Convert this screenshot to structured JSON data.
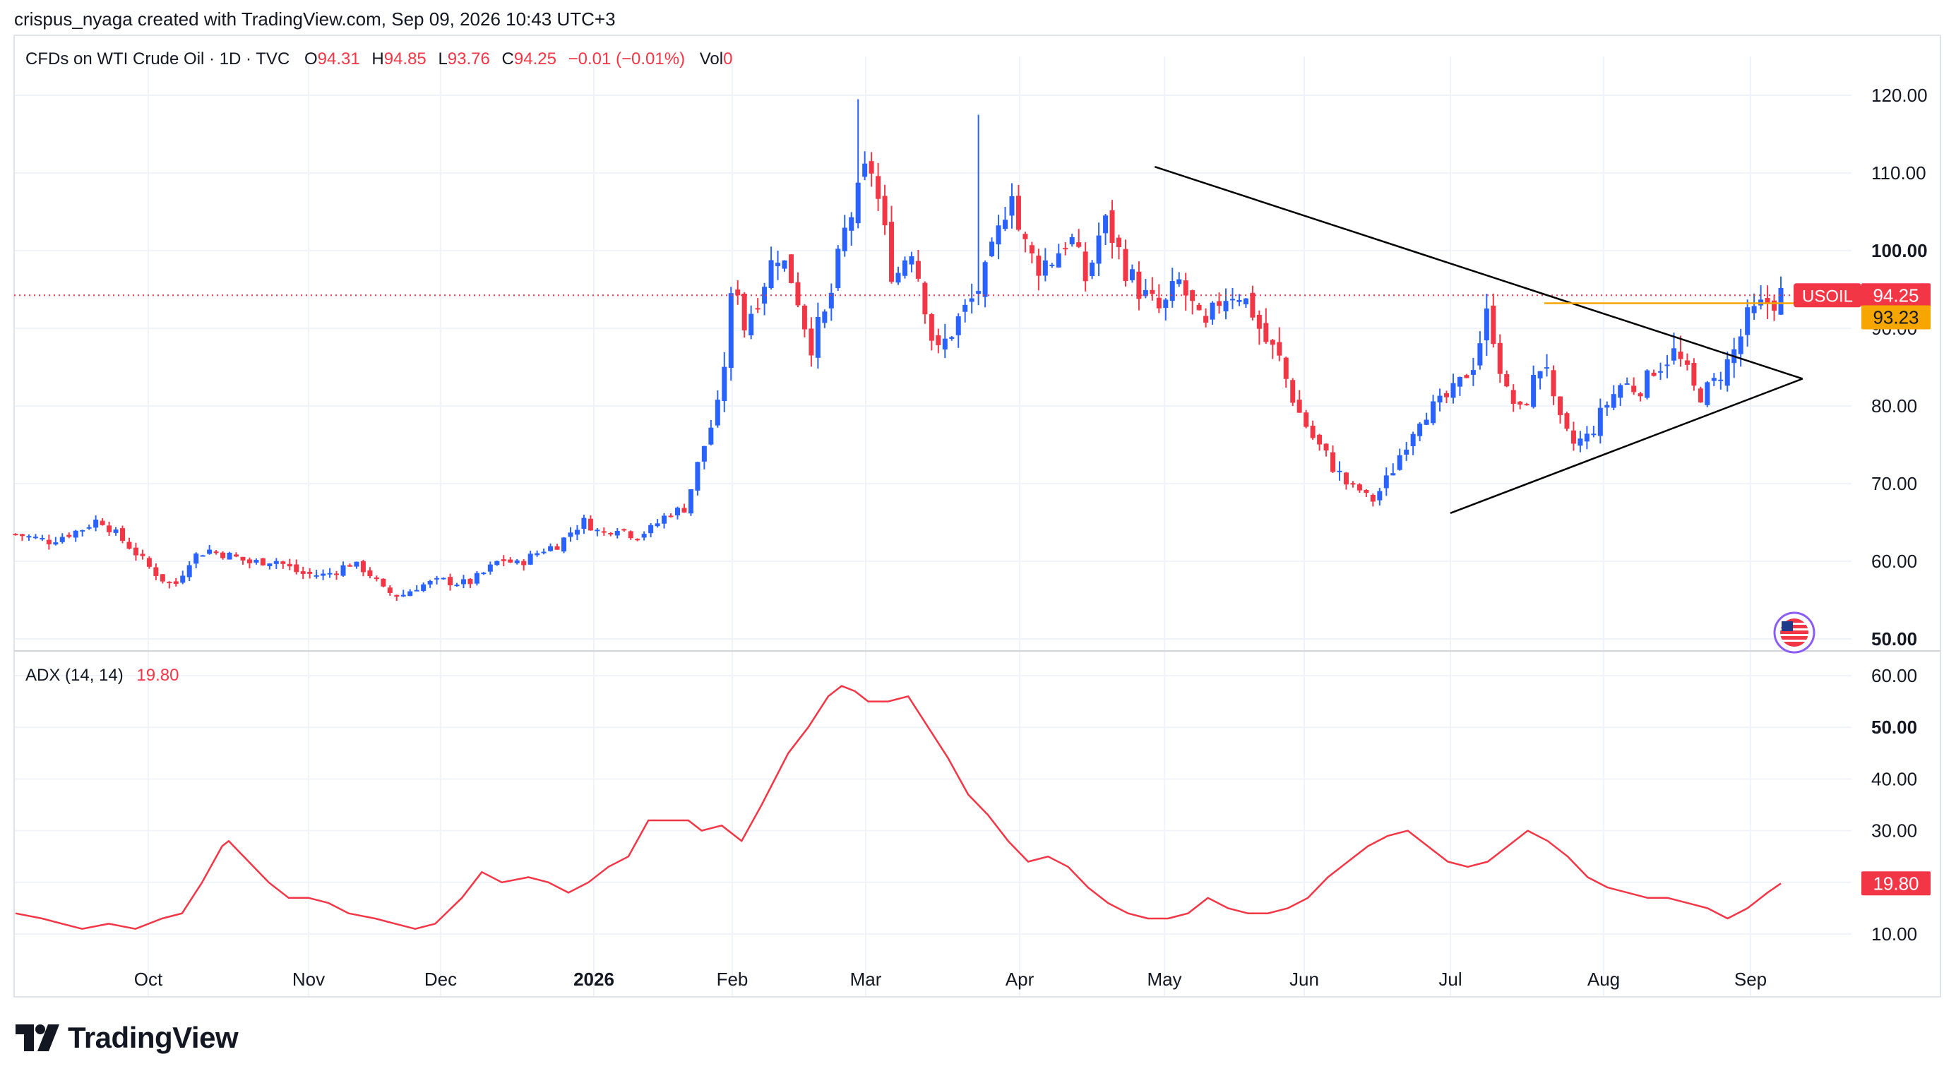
{
  "attribution": "crispus_nyaga created with TradingView.com, Sep 09, 2026 10:43 UTC+3",
  "brand": "TradingView",
  "colors": {
    "up": "#2962ff",
    "down": "#f23645",
    "adx": "#f23645",
    "level": "#f7a600",
    "trend": "#000000",
    "grid": "#f0f3fa"
  },
  "legend": {
    "symbol": "CFDs on WTI Crude Oil · 1D · TVC",
    "o_label": "O",
    "o": "94.31",
    "h_label": "H",
    "h": "94.85",
    "l_label": "L",
    "l": "93.76",
    "c_label": "C",
    "c": "94.25",
    "change": "−0.01 (−0.01%)",
    "vol_label": "Vol",
    "vol": "0"
  },
  "adx_legend": {
    "label": "ADX (14, 14)",
    "value": "19.80"
  },
  "price_tags": {
    "ticker": "USOIL",
    "last": "94.25",
    "level": "93.23",
    "adx": "19.80"
  },
  "chart_data": [
    {
      "type": "candlestick",
      "title": "CFDs on WTI Crude Oil · 1D · TVC",
      "x_ticks": [
        "Oct",
        "Nov",
        "Dec",
        "2026",
        "Feb",
        "Mar",
        "Apr",
        "May",
        "Jun",
        "Jul",
        "Aug",
        "Sep"
      ],
      "y_ticks": [
        "50.00",
        "60.00",
        "70.00",
        "80.00",
        "90.00",
        "100.00",
        "110.00",
        "120.00"
      ],
      "ylim": [
        48,
        125
      ],
      "grid": true,
      "last_price": 94.25,
      "horizontal_level": 93.23,
      "series_path": [
        [
          0,
          63.5
        ],
        [
          4,
          62.6
        ],
        [
          8,
          64.2
        ],
        [
          10,
          65.5
        ],
        [
          12,
          63.5
        ],
        [
          14,
          61.5
        ],
        [
          16,
          59.2
        ],
        [
          18,
          57.3
        ],
        [
          19,
          56.8
        ],
        [
          21,
          60.5
        ],
        [
          23,
          61.5
        ],
        [
          26,
          60.6
        ],
        [
          28,
          59.8
        ],
        [
          31,
          60.2
        ],
        [
          34,
          58.4
        ],
        [
          37,
          58.2
        ],
        [
          40,
          59.7
        ],
        [
          42,
          58.8
        ],
        [
          44,
          56.2
        ],
        [
          46,
          55.5
        ],
        [
          48,
          56.8
        ],
        [
          51,
          57.5
        ],
        [
          54,
          57.1
        ],
        [
          56,
          58.5
        ],
        [
          58,
          60.3
        ],
        [
          60,
          59.6
        ],
        [
          63,
          61.5
        ],
        [
          65,
          62.2
        ],
        [
          66,
          63.5
        ],
        [
          68,
          65.2
        ],
        [
          70,
          63.5
        ],
        [
          72,
          64.5
        ],
        [
          74,
          63.2
        ],
        [
          76,
          64.2
        ],
        [
          78,
          66.2
        ],
        [
          80,
          66.8
        ],
        [
          82,
          74
        ],
        [
          84,
          80
        ],
        [
          85,
          88
        ],
        [
          86,
          98
        ],
        [
          87,
          90
        ],
        [
          89,
          95
        ],
        [
          91,
          100
        ],
        [
          93,
          96
        ],
        [
          95,
          88
        ],
        [
          97,
          92
        ],
        [
          99,
          102
        ],
        [
          101,
          108
        ],
        [
          102,
          112
        ],
        [
          103,
          107
        ],
        [
          105,
          96
        ],
        [
          107,
          101
        ],
        [
          109,
          92
        ],
        [
          110,
          86
        ],
        [
          111,
          88
        ],
        [
          112,
          90
        ],
        [
          114,
          93
        ],
        [
          116,
          97
        ],
        [
          118,
          104
        ],
        [
          119,
          109
        ],
        [
          120,
          102
        ],
        [
          122,
          98
        ],
        [
          124,
          99
        ],
        [
          126,
          102
        ],
        [
          128,
          96
        ],
        [
          130,
          104
        ],
        [
          131,
          102
        ],
        [
          133,
          97
        ],
        [
          135,
          94
        ],
        [
          137,
          92
        ],
        [
          139,
          96
        ],
        [
          141,
          92
        ],
        [
          142,
          89
        ],
        [
          144,
          94
        ],
        [
          146,
          95
        ],
        [
          148,
          92
        ],
        [
          149,
          89
        ],
        [
          151,
          86
        ],
        [
          153,
          80
        ],
        [
          155,
          76
        ],
        [
          157,
          73
        ],
        [
          159,
          70
        ],
        [
          161,
          69
        ],
        [
          162,
          67.5
        ],
        [
          164,
          70.5
        ],
        [
          166,
          75
        ],
        [
          168,
          79
        ],
        [
          170,
          80
        ],
        [
          172,
          82
        ],
        [
          174,
          85
        ],
        [
          176,
          92
        ],
        [
          177,
          88
        ],
        [
          178,
          82
        ],
        [
          180,
          79
        ],
        [
          182,
          85
        ],
        [
          183,
          86
        ],
        [
          184,
          79
        ],
        [
          186,
          75
        ],
        [
          188,
          76
        ],
        [
          190,
          80
        ],
        [
          192,
          83
        ],
        [
          194,
          82
        ],
        [
          196,
          85
        ],
        [
          198,
          87
        ],
        [
          200,
          84
        ],
        [
          201,
          81
        ],
        [
          203,
          83
        ],
        [
          205,
          86
        ],
        [
          207,
          91
        ],
        [
          209,
          93
        ],
        [
          211,
          94.3
        ]
      ],
      "annotations": [
        {
          "type": "trendline",
          "from": [
            "2026-04-29",
            110.8
          ],
          "to": [
            "2026-09-12",
            83.5
          ]
        },
        {
          "type": "trendline",
          "from": [
            "2026-07-01",
            66.2
          ],
          "to": [
            "2026-09-12",
            83.5
          ]
        },
        {
          "type": "horizontal_segment",
          "from": "2026-07-20",
          "to": "2026-09-09",
          "value": 93.23
        }
      ]
    },
    {
      "type": "line",
      "title": "ADX (14, 14)",
      "x_ticks": [
        "Oct",
        "Nov",
        "Dec",
        "2026",
        "Feb",
        "Mar",
        "Apr",
        "May",
        "Jun",
        "Jul",
        "Aug",
        "Sep"
      ],
      "y_ticks": [
        "10.00",
        "20.00",
        "30.00",
        "40.00",
        "50.00",
        "60.00"
      ],
      "ylim": [
        5,
        63
      ],
      "last_value": 19.8,
      "series": [
        {
          "name": "ADX",
          "points": [
            [
              0,
              14
            ],
            [
              4,
              13
            ],
            [
              7,
              12
            ],
            [
              10,
              11
            ],
            [
              14,
              12
            ],
            [
              18,
              11
            ],
            [
              22,
              13
            ],
            [
              25,
              14
            ],
            [
              28,
              20
            ],
            [
              31,
              27
            ],
            [
              32,
              28
            ],
            [
              35,
              24
            ],
            [
              38,
              20
            ],
            [
              41,
              17
            ],
            [
              44,
              17
            ],
            [
              47,
              16
            ],
            [
              50,
              14
            ],
            [
              54,
              13
            ],
            [
              57,
              12
            ],
            [
              60,
              11
            ],
            [
              63,
              12
            ],
            [
              67,
              17
            ],
            [
              70,
              22
            ],
            [
              73,
              20
            ],
            [
              77,
              21
            ],
            [
              80,
              20
            ],
            [
              83,
              18
            ],
            [
              86,
              20
            ],
            [
              89,
              23
            ],
            [
              92,
              25
            ],
            [
              95,
              32
            ],
            [
              98,
              32
            ],
            [
              101,
              32
            ],
            [
              103,
              30
            ],
            [
              106,
              31
            ],
            [
              109,
              28
            ],
            [
              112,
              35
            ],
            [
              116,
              45
            ],
            [
              119,
              50
            ],
            [
              122,
              56
            ],
            [
              124,
              58
            ],
            [
              126,
              57
            ],
            [
              128,
              55
            ],
            [
              131,
              55
            ],
            [
              134,
              56
            ],
            [
              137,
              50
            ],
            [
              140,
              44
            ],
            [
              143,
              37
            ],
            [
              146,
              33
            ],
            [
              149,
              28
            ],
            [
              152,
              24
            ],
            [
              155,
              25
            ],
            [
              158,
              23
            ],
            [
              161,
              19
            ],
            [
              164,
              16
            ],
            [
              167,
              14
            ],
            [
              170,
              13
            ],
            [
              173,
              13
            ],
            [
              176,
              14
            ],
            [
              179,
              17
            ],
            [
              182,
              15
            ],
            [
              185,
              14
            ],
            [
              188,
              14
            ],
            [
              191,
              15
            ],
            [
              194,
              17
            ],
            [
              197,
              21
            ],
            [
              200,
              24
            ],
            [
              203,
              27
            ],
            [
              206,
              29
            ],
            [
              209,
              30
            ],
            [
              212,
              27
            ],
            [
              215,
              24
            ],
            [
              218,
              23
            ],
            [
              221,
              24
            ],
            [
              224,
              27
            ],
            [
              227,
              30
            ],
            [
              230,
              28
            ],
            [
              233,
              25
            ],
            [
              236,
              21
            ],
            [
              239,
              19
            ],
            [
              242,
              18
            ],
            [
              245,
              17
            ],
            [
              248,
              17
            ],
            [
              251,
              16
            ],
            [
              254,
              15
            ],
            [
              257,
              13
            ],
            [
              260,
              15
            ],
            [
              263,
              18
            ],
            [
              265,
              19.8
            ]
          ]
        }
      ]
    }
  ]
}
